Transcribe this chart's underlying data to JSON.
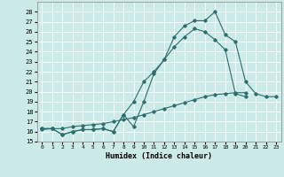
{
  "title": "",
  "xlabel": "Humidex (Indice chaleur)",
  "bg_color": "#cceae7",
  "grid_color": "#ffffff",
  "line_color": "#2d6e6e",
  "x_values": [
    0,
    1,
    2,
    3,
    4,
    5,
    6,
    7,
    8,
    9,
    10,
    11,
    12,
    13,
    14,
    15,
    16,
    17,
    18,
    19,
    20,
    21,
    22,
    23
  ],
  "line1": [
    16.3,
    16.3,
    15.7,
    16.0,
    16.2,
    16.2,
    16.3,
    16.0,
    17.7,
    16.5,
    19.0,
    21.8,
    23.2,
    25.5,
    26.6,
    27.1,
    27.1,
    28.0,
    25.7,
    25.0,
    21.0,
    19.8,
    19.5,
    19.5
  ],
  "line2": [
    16.3,
    16.3,
    15.7,
    16.0,
    16.2,
    16.2,
    16.3,
    16.0,
    17.7,
    19.0,
    21.0,
    22.0,
    23.2,
    24.5,
    25.5,
    26.3,
    26.0,
    25.2,
    24.2,
    19.8,
    19.5,
    null,
    null,
    null
  ],
  "line3": [
    16.2,
    16.3,
    16.3,
    16.5,
    16.6,
    16.7,
    16.8,
    17.0,
    17.2,
    17.4,
    17.7,
    18.0,
    18.3,
    18.6,
    18.9,
    19.2,
    19.5,
    19.7,
    19.8,
    19.9,
    19.9,
    null,
    null,
    null
  ],
  "ylim": [
    15,
    29
  ],
  "xlim": [
    -0.5,
    23.5
  ],
  "yticks": [
    15,
    16,
    17,
    18,
    19,
    20,
    21,
    22,
    23,
    24,
    25,
    26,
    27,
    28
  ],
  "xticks": [
    0,
    1,
    2,
    3,
    4,
    5,
    6,
    7,
    8,
    9,
    10,
    11,
    12,
    13,
    14,
    15,
    16,
    17,
    18,
    19,
    20,
    21,
    22,
    23
  ]
}
